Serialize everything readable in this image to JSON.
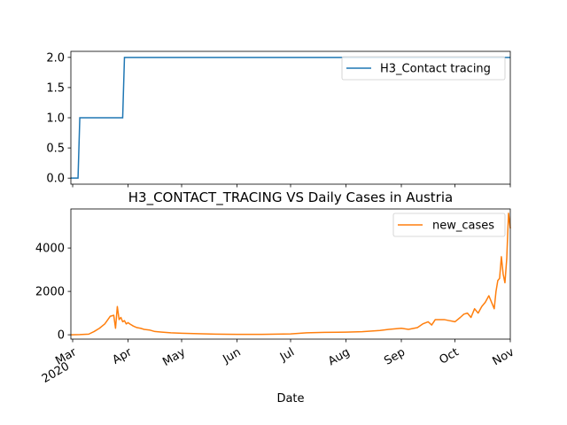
{
  "chart_data": [
    {
      "type": "line",
      "title": "",
      "xlabel": "",
      "ylabel": "",
      "x_range": [
        "2020-02-29",
        "2020-11-01"
      ],
      "ylim": [
        -0.1,
        2.1
      ],
      "yticks": [
        "0.0",
        "0.5",
        "1.0",
        "1.5",
        "2.0"
      ],
      "grid": false,
      "legend_position": "top-right",
      "series": [
        {
          "name": "H3_Contact tracing",
          "color": "#1f77b4",
          "x": [
            "2020-02-29",
            "2020-03-04",
            "2020-03-05",
            "2020-03-29",
            "2020-03-30",
            "2020-11-01"
          ],
          "values": [
            0,
            0,
            1,
            1,
            2,
            2
          ]
        }
      ]
    },
    {
      "type": "line",
      "title": "H3_CONTACT_TRACING VS Daily Cases in Austria",
      "xlabel": "Date",
      "ylabel": "",
      "x_range": [
        "2020-02-29",
        "2020-11-01"
      ],
      "ylim": [
        -200,
        5800
      ],
      "yticks": [
        "0",
        "2000",
        "4000"
      ],
      "xticks": [
        {
          "date": "2020-03-01",
          "label": "Mar",
          "sublabel": "2020"
        },
        {
          "date": "2020-04-01",
          "label": "Apr",
          "sublabel": ""
        },
        {
          "date": "2020-05-01",
          "label": "May",
          "sublabel": ""
        },
        {
          "date": "2020-06-01",
          "label": "Jun",
          "sublabel": ""
        },
        {
          "date": "2020-07-01",
          "label": "Jul",
          "sublabel": ""
        },
        {
          "date": "2020-08-01",
          "label": "Aug",
          "sublabel": ""
        },
        {
          "date": "2020-09-01",
          "label": "Sep",
          "sublabel": ""
        },
        {
          "date": "2020-10-01",
          "label": "Oct",
          "sublabel": ""
        },
        {
          "date": "2020-11-01",
          "label": "Nov",
          "sublabel": ""
        }
      ],
      "grid": false,
      "legend_position": "top-right",
      "series": [
        {
          "name": "new_cases",
          "color": "#ff7f0e",
          "x": [
            "2020-02-29",
            "2020-03-05",
            "2020-03-10",
            "2020-03-13",
            "2020-03-16",
            "2020-03-19",
            "2020-03-22",
            "2020-03-24",
            "2020-03-25",
            "2020-03-26",
            "2020-03-27",
            "2020-03-28",
            "2020-03-29",
            "2020-03-30",
            "2020-03-31",
            "2020-04-01",
            "2020-04-02",
            "2020-04-04",
            "2020-04-06",
            "2020-04-08",
            "2020-04-10",
            "2020-04-13",
            "2020-04-16",
            "2020-04-20",
            "2020-04-25",
            "2020-05-01",
            "2020-05-10",
            "2020-05-20",
            "2020-06-01",
            "2020-06-15",
            "2020-07-01",
            "2020-07-10",
            "2020-07-20",
            "2020-08-01",
            "2020-08-10",
            "2020-08-20",
            "2020-08-25",
            "2020-09-01",
            "2020-09-05",
            "2020-09-10",
            "2020-09-13",
            "2020-09-16",
            "2020-09-18",
            "2020-09-20",
            "2020-09-25",
            "2020-09-28",
            "2020-10-01",
            "2020-10-04",
            "2020-10-06",
            "2020-10-08",
            "2020-10-10",
            "2020-10-12",
            "2020-10-14",
            "2020-10-16",
            "2020-10-18",
            "2020-10-20",
            "2020-10-22",
            "2020-10-23",
            "2020-10-24",
            "2020-10-25",
            "2020-10-26",
            "2020-10-27",
            "2020-10-28",
            "2020-10-29",
            "2020-10-30",
            "2020-10-31",
            "2020-11-01"
          ],
          "values": [
            0,
            10,
            30,
            150,
            300,
            500,
            850,
            900,
            300,
            1300,
            700,
            800,
            600,
            650,
            500,
            560,
            500,
            400,
            330,
            300,
            250,
            220,
            150,
            120,
            90,
            70,
            50,
            30,
            20,
            20,
            40,
            90,
            110,
            120,
            140,
            200,
            250,
            300,
            250,
            330,
            500,
            600,
            450,
            700,
            700,
            650,
            600,
            800,
            950,
            1000,
            800,
            1200,
            1000,
            1300,
            1500,
            1800,
            1400,
            1200,
            2000,
            2500,
            2600,
            3600,
            2800,
            2400,
            3500,
            5600,
            4900
          ]
        }
      ]
    }
  ]
}
